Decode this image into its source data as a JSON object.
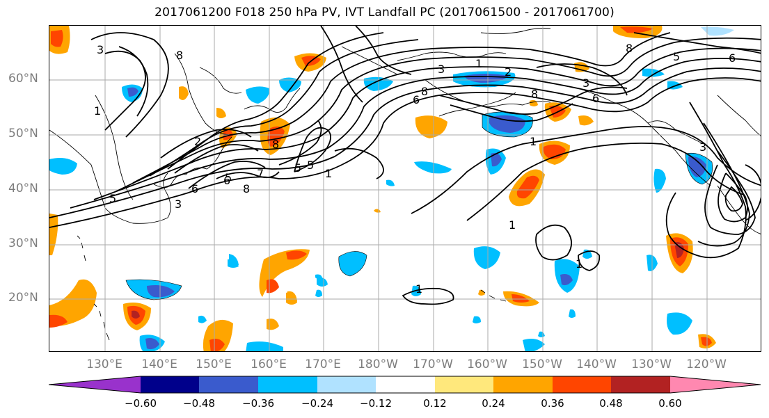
{
  "title": "2017061200 F018 250 hPa PV, IVT Landfall PC (2017061500 - 2017061700)",
  "lat_labels": [
    "60°N",
    "50°N",
    "40°N",
    "30°N",
    "20°N"
  ],
  "lon_labels": [
    "130°E",
    "140°E",
    "150°E",
    "160°E",
    "170°E",
    "180°W",
    "170°W",
    "160°W",
    "150°W",
    "140°W",
    "130°W",
    "120°W"
  ],
  "contour_labels": [
    "8",
    "3",
    "1",
    "2",
    "5",
    "6",
    "8",
    "5",
    "6",
    "8",
    "1",
    "3",
    "5",
    "6",
    "8",
    "7",
    "5",
    "1",
    "8",
    "3",
    "2",
    "1",
    "3",
    "6",
    "1",
    "1",
    "1",
    "3",
    "5",
    "8",
    "6"
  ],
  "colorbar": {
    "ticks": [
      "−0.60",
      "−0.48",
      "−0.36",
      "−0.24",
      "−0.12",
      "0.12",
      "0.24",
      "0.36",
      "0.48",
      "0.60"
    ],
    "colors": [
      "#9932cc",
      "#00008b",
      "#3a5bcd",
      "#00bfff",
      "#b0e2ff",
      "#ffffff",
      "#ffe87c",
      "#ffa500",
      "#ff4500",
      "#b22222",
      "#ff88b0"
    ]
  },
  "colors": {
    "grid": "#aaaaaa",
    "axis_label": "#7d7d7d",
    "contour": "#000000"
  }
}
